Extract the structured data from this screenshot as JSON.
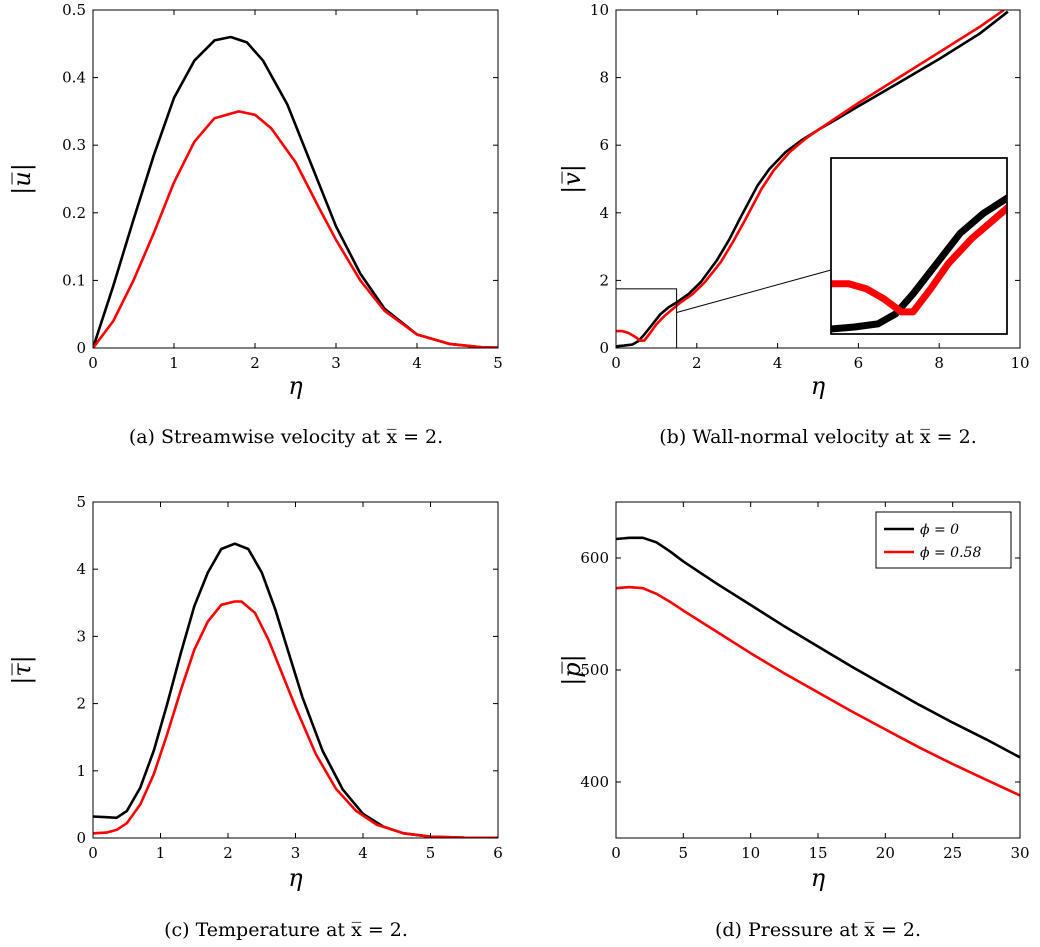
{
  "chart_data": [
    {
      "id": "a",
      "type": "line",
      "xlabel": "η",
      "ylabel": "|u̅|",
      "xlim": [
        0,
        5
      ],
      "ylim": [
        0,
        0.5
      ],
      "xticks": [
        0,
        1,
        2,
        3,
        4,
        5
      ],
      "yticks": [
        0,
        0.1,
        0.2,
        0.3,
        0.4,
        0.5
      ],
      "xtick_labels": [
        "0",
        "1",
        "2",
        "3",
        "4",
        "5"
      ],
      "ytick_labels": [
        "0",
        "0.1",
        "0.2",
        "0.3",
        "0.4",
        "0.5"
      ],
      "caption": "(a) Streamwise velocity at x̅ = 2.",
      "series": [
        {
          "color": "#000000",
          "x": [
            0,
            0.25,
            0.5,
            0.75,
            1.0,
            1.25,
            1.5,
            1.7,
            1.9,
            2.1,
            2.4,
            2.7,
            3.0,
            3.3,
            3.6,
            4.0,
            4.4,
            4.8,
            5.0
          ],
          "y": [
            0,
            0.092,
            0.19,
            0.285,
            0.37,
            0.425,
            0.455,
            0.46,
            0.452,
            0.425,
            0.36,
            0.27,
            0.18,
            0.11,
            0.058,
            0.02,
            0.006,
            0.001,
            0.0005
          ]
        },
        {
          "color": "#ff0000",
          "x": [
            0,
            0.25,
            0.5,
            0.75,
            1.0,
            1.25,
            1.5,
            1.8,
            2.0,
            2.2,
            2.5,
            2.8,
            3.0,
            3.3,
            3.6,
            4.0,
            4.4,
            4.8,
            5.0
          ],
          "y": [
            0,
            0.04,
            0.1,
            0.17,
            0.245,
            0.305,
            0.34,
            0.35,
            0.345,
            0.325,
            0.275,
            0.205,
            0.16,
            0.1,
            0.055,
            0.02,
            0.006,
            0.001,
            0.0005
          ]
        }
      ]
    },
    {
      "id": "b",
      "type": "line",
      "xlabel": "η",
      "ylabel": "|v̅|",
      "xlim": [
        0,
        10
      ],
      "ylim": [
        0,
        10
      ],
      "xticks": [
        0,
        2,
        4,
        6,
        8,
        10
      ],
      "yticks": [
        0,
        2,
        4,
        6,
        8,
        10
      ],
      "xtick_labels": [
        "0",
        "2",
        "4",
        "6",
        "8",
        "10"
      ],
      "ytick_labels": [
        "0",
        "2",
        "4",
        "6",
        "8",
        "10"
      ],
      "caption": "(b) Wall-normal velocity at x̅ = 2.",
      "inset_box": {
        "xlim": [
          0,
          1.5
        ],
        "ylim": [
          0,
          1.75
        ]
      },
      "series": [
        {
          "color": "#000000",
          "x": [
            0,
            0.2,
            0.4,
            0.55,
            0.7,
            0.9,
            1.1,
            1.3,
            1.5,
            1.8,
            2.1,
            2.5,
            2.8,
            3.1,
            3.5,
            3.8,
            4.2,
            4.6,
            5.0,
            5.5,
            6.0,
            7.0,
            8.0,
            9.0,
            9.7
          ],
          "y": [
            0.05,
            0.07,
            0.1,
            0.2,
            0.4,
            0.7,
            1.0,
            1.2,
            1.35,
            1.6,
            1.95,
            2.6,
            3.2,
            3.9,
            4.8,
            5.3,
            5.8,
            6.15,
            6.45,
            6.8,
            7.15,
            7.85,
            8.55,
            9.3,
            9.95
          ]
        },
        {
          "color": "#ff0000",
          "x": [
            0,
            0.15,
            0.3,
            0.45,
            0.6,
            0.7,
            0.85,
            1.0,
            1.2,
            1.4,
            1.6,
            1.9,
            2.2,
            2.6,
            2.9,
            3.2,
            3.6,
            3.9,
            4.3,
            4.7,
            5.0,
            5.5,
            6.0,
            7.0,
            8.0,
            9.0,
            9.6
          ],
          "y": [
            0.5,
            0.5,
            0.45,
            0.35,
            0.22,
            0.22,
            0.45,
            0.7,
            0.95,
            1.15,
            1.35,
            1.6,
            1.95,
            2.55,
            3.15,
            3.8,
            4.7,
            5.25,
            5.8,
            6.2,
            6.45,
            6.85,
            7.25,
            8.0,
            8.75,
            9.5,
            10.0
          ]
        }
      ]
    },
    {
      "id": "c",
      "type": "line",
      "xlabel": "η",
      "ylabel": "|τ̅|",
      "xlim": [
        0,
        6
      ],
      "ylim": [
        0,
        5
      ],
      "xticks": [
        0,
        1,
        2,
        3,
        4,
        5,
        6
      ],
      "yticks": [
        0,
        1,
        2,
        3,
        4,
        5
      ],
      "xtick_labels": [
        "0",
        "1",
        "2",
        "3",
        "4",
        "5",
        "6"
      ],
      "ytick_labels": [
        "0",
        "1",
        "2",
        "3",
        "4",
        "5"
      ],
      "caption": "(c) Temperature at x̅ = 2.",
      "series": [
        {
          "color": "#000000",
          "x": [
            0,
            0.2,
            0.35,
            0.5,
            0.7,
            0.9,
            1.1,
            1.3,
            1.5,
            1.7,
            1.9,
            2.1,
            2.3,
            2.5,
            2.7,
            2.9,
            3.1,
            3.4,
            3.7,
            4.0,
            4.3,
            4.6,
            5.0,
            5.5,
            6.0
          ],
          "y": [
            0.32,
            0.31,
            0.3,
            0.4,
            0.75,
            1.3,
            2.0,
            2.75,
            3.45,
            3.95,
            4.3,
            4.38,
            4.3,
            3.95,
            3.4,
            2.75,
            2.1,
            1.3,
            0.72,
            0.36,
            0.17,
            0.07,
            0.02,
            0.005,
            0.001
          ]
        },
        {
          "color": "#ff0000",
          "x": [
            0,
            0.2,
            0.35,
            0.5,
            0.7,
            0.9,
            1.1,
            1.3,
            1.5,
            1.7,
            1.9,
            2.1,
            2.2,
            2.4,
            2.6,
            2.8,
            3.0,
            3.3,
            3.6,
            3.9,
            4.2,
            4.6,
            5.0,
            5.5,
            6.0
          ],
          "y": [
            0.07,
            0.08,
            0.12,
            0.22,
            0.5,
            0.95,
            1.55,
            2.2,
            2.8,
            3.22,
            3.47,
            3.52,
            3.52,
            3.35,
            2.95,
            2.45,
            1.95,
            1.25,
            0.73,
            0.4,
            0.2,
            0.07,
            0.02,
            0.005,
            0.001
          ]
        }
      ]
    },
    {
      "id": "d",
      "type": "line",
      "xlabel": "η",
      "ylabel": "|p̅|",
      "xlim": [
        0,
        30
      ],
      "ylim": [
        350,
        650
      ],
      "xticks": [
        0,
        5,
        10,
        15,
        20,
        25,
        30
      ],
      "yticks": [
        400,
        500,
        600
      ],
      "xtick_labels": [
        "0",
        "5",
        "10",
        "15",
        "20",
        "25",
        "30"
      ],
      "ytick_labels": [
        "400",
        "500",
        "600"
      ],
      "caption": "(d) Pressure at x̅ = 2.",
      "legend": {
        "position": "top-right",
        "entries": [
          "ϕ = 0",
          "ϕ = 0.58"
        ]
      },
      "series": [
        {
          "name": "ϕ = 0",
          "color": "#000000",
          "x": [
            0,
            1,
            2,
            3,
            4,
            5,
            7.5,
            10,
            12.5,
            15,
            17.5,
            20,
            22.5,
            25,
            27.5,
            30
          ],
          "y": [
            617,
            618,
            618,
            614,
            606,
            597,
            577,
            558,
            539,
            521,
            503,
            486,
            469,
            453,
            438,
            422
          ]
        },
        {
          "name": "ϕ = 0.58",
          "color": "#ff0000",
          "x": [
            0,
            1,
            2,
            3,
            4,
            5,
            7.5,
            10,
            12.5,
            15,
            17.5,
            20,
            22.5,
            25,
            27.5,
            30
          ],
          "y": [
            573,
            574,
            573,
            568,
            561,
            553,
            534,
            515,
            497,
            480,
            463,
            447,
            431,
            416,
            402,
            388
          ]
        }
      ]
    }
  ]
}
